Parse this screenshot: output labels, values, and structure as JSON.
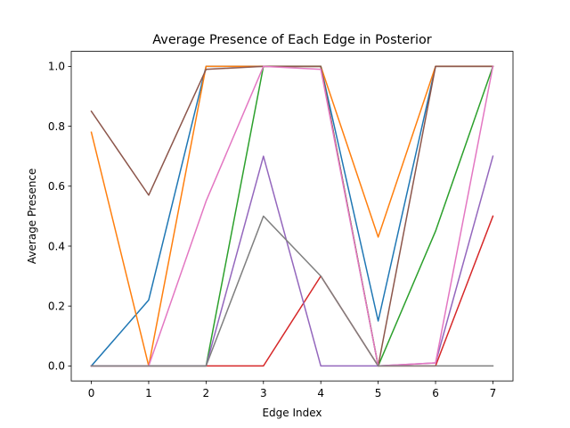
{
  "chart_data": {
    "type": "line",
    "title": "Average Presence of Each Edge in Posterior",
    "xlabel": "Edge Index",
    "ylabel": "Average Presence",
    "x": [
      0,
      1,
      2,
      3,
      4,
      5,
      6,
      7
    ],
    "xlim": [
      -0.35,
      7.35
    ],
    "ylim": [
      -0.05,
      1.05
    ],
    "xticks": [
      "0",
      "1",
      "2",
      "3",
      "4",
      "5",
      "6",
      "7"
    ],
    "yticks": [
      "0.0",
      "0.2",
      "0.4",
      "0.6",
      "0.8",
      "1.0"
    ],
    "grid": false,
    "series": [
      {
        "color": "#1f77b4",
        "values": [
          0.0,
          0.22,
          1.0,
          1.0,
          1.0,
          0.15,
          1.0,
          1.0
        ]
      },
      {
        "color": "#ff7f0e",
        "values": [
          0.78,
          0.0,
          1.0,
          1.0,
          1.0,
          0.43,
          1.0,
          1.0
        ]
      },
      {
        "color": "#2ca02c",
        "values": [
          0.0,
          0.0,
          0.0,
          1.0,
          1.0,
          0.0,
          0.45,
          1.0
        ]
      },
      {
        "color": "#d62728",
        "values": [
          0.0,
          0.0,
          0.0,
          0.0,
          0.3,
          0.0,
          0.0,
          0.5
        ]
      },
      {
        "color": "#9467bd",
        "values": [
          0.0,
          0.0,
          0.0,
          0.7,
          0.0,
          0.0,
          0.01,
          0.7
        ]
      },
      {
        "color": "#8c564b",
        "values": [
          0.85,
          0.57,
          0.99,
          1.0,
          1.0,
          0.0,
          1.0,
          1.0
        ]
      },
      {
        "color": "#e377c2",
        "values": [
          0.0,
          0.0,
          0.55,
          1.0,
          0.99,
          0.0,
          0.01,
          1.0
        ]
      },
      {
        "color": "#7f7f7f",
        "values": [
          0.0,
          0.0,
          0.0,
          0.5,
          0.3,
          0.0,
          0.0,
          0.0
        ]
      }
    ]
  }
}
